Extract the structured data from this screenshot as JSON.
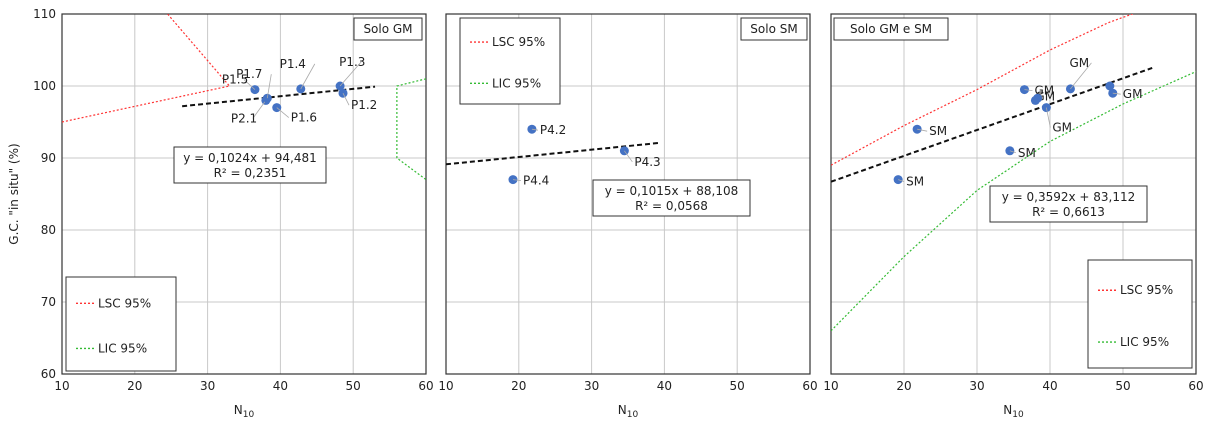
{
  "chart_data": [
    {
      "type": "scatter",
      "title": "Solo GM",
      "xlabel": "N10",
      "ylabel": "G.C. \"in situ\" (%)",
      "xlim": [
        10,
        60
      ],
      "ylim": [
        60,
        110
      ],
      "xticks": [
        "10",
        "20",
        "30",
        "40",
        "50",
        "60"
      ],
      "yticks": [
        "60",
        "70",
        "80",
        "90",
        "100",
        "110"
      ],
      "grid": true,
      "points": [
        {
          "x": 36.5,
          "y": 99.5,
          "label": "P1.5"
        },
        {
          "x": 38.0,
          "y": 98.0,
          "label": "P2.1"
        },
        {
          "x": 38.2,
          "y": 98.3,
          "label": "P1.7"
        },
        {
          "x": 39.5,
          "y": 97.0,
          "label": "P1.6"
        },
        {
          "x": 42.8,
          "y": 99.6,
          "label": "P1.4"
        },
        {
          "x": 48.2,
          "y": 100.0,
          "label": "P1.3"
        },
        {
          "x": 48.6,
          "y": 99.0,
          "label": "P1.2"
        }
      ],
      "trendline": {
        "x": [
          26.5,
          53.0
        ],
        "slope": 0.1024,
        "intercept": 94.481
      },
      "equation": "y = 0,1024x + 94,481",
      "r2": "R² = 0,2351",
      "lsc_line": {
        "name": "LSC 95%",
        "color": "#ff3333",
        "x": [
          10,
          33,
          24.5
        ],
        "y": [
          95,
          100,
          110
        ]
      },
      "lic_line": {
        "name": "LIC 95%",
        "color": "#33bb33",
        "x": [
          60,
          56,
          56,
          60
        ],
        "y": [
          101,
          100,
          90,
          87
        ]
      },
      "legend": {
        "position": "bottom-left",
        "items": [
          "LSC 95%",
          "LIC 95%"
        ]
      }
    },
    {
      "type": "scatter",
      "title": "Solo SM",
      "xlabel": "N10",
      "xlim": [
        10,
        60
      ],
      "ylim": [
        60,
        110
      ],
      "xticks": [
        "10",
        "20",
        "30",
        "40",
        "50",
        "60"
      ],
      "grid": true,
      "points": [
        {
          "x": 21.8,
          "y": 94.0,
          "label": "P4.2"
        },
        {
          "x": 34.5,
          "y": 91.0,
          "label": "P4.3"
        },
        {
          "x": 19.2,
          "y": 87.0,
          "label": "P4.4"
        }
      ],
      "trendline": {
        "x": [
          10,
          39.5
        ],
        "slope": 0.1015,
        "intercept": 88.108
      },
      "equation": "y = 0,1015x + 88,108",
      "r2": "R² = 0,0568",
      "legend": {
        "position": "top-left",
        "items": [
          "LSC 95%",
          "LIC 95%"
        ]
      }
    },
    {
      "type": "scatter",
      "title": "Solo GM e SM",
      "xlabel": "N10",
      "xlim": [
        10,
        60
      ],
      "ylim": [
        60,
        110
      ],
      "xticks": [
        "10",
        "20",
        "30",
        "40",
        "50",
        "60"
      ],
      "grid": true,
      "points": [
        {
          "x": 36.5,
          "y": 99.5,
          "label": "GM"
        },
        {
          "x": 38.0,
          "y": 98.0,
          "label": "GM"
        },
        {
          "x": 38.3,
          "y": 98.3,
          "label": ""
        },
        {
          "x": 39.5,
          "y": 97.0,
          "label": "GM"
        },
        {
          "x": 42.8,
          "y": 99.6,
          "label": "GM"
        },
        {
          "x": 48.2,
          "y": 100.0,
          "label": ""
        },
        {
          "x": 48.6,
          "y": 99.0,
          "label": "GM"
        },
        {
          "x": 21.8,
          "y": 94.0,
          "label": "SM"
        },
        {
          "x": 34.5,
          "y": 91.0,
          "label": "SM"
        },
        {
          "x": 19.2,
          "y": 87.0,
          "label": "SM"
        }
      ],
      "trendline": {
        "x": [
          10,
          54
        ],
        "slope": 0.3592,
        "intercept": 83.112
      },
      "equation": "y = 0,3592x + 83,112",
      "r2": "R² = 0,6613",
      "lsc_line": {
        "name": "LSC 95%",
        "color": "#ff3333",
        "x": [
          10,
          20,
          30,
          40,
          48,
          54
        ],
        "y": [
          89,
          94.5,
          99.5,
          105,
          108.8,
          111
        ]
      },
      "lic_line": {
        "name": "LIC 95%",
        "color": "#33bb33",
        "x": [
          10,
          20,
          30,
          40,
          50,
          60
        ],
        "y": [
          66,
          76.3,
          85.5,
          92.3,
          97.5,
          102
        ]
      },
      "legend": {
        "position": "bottom-right",
        "items": [
          "LSC 95%",
          "LIC 95%"
        ]
      }
    }
  ]
}
